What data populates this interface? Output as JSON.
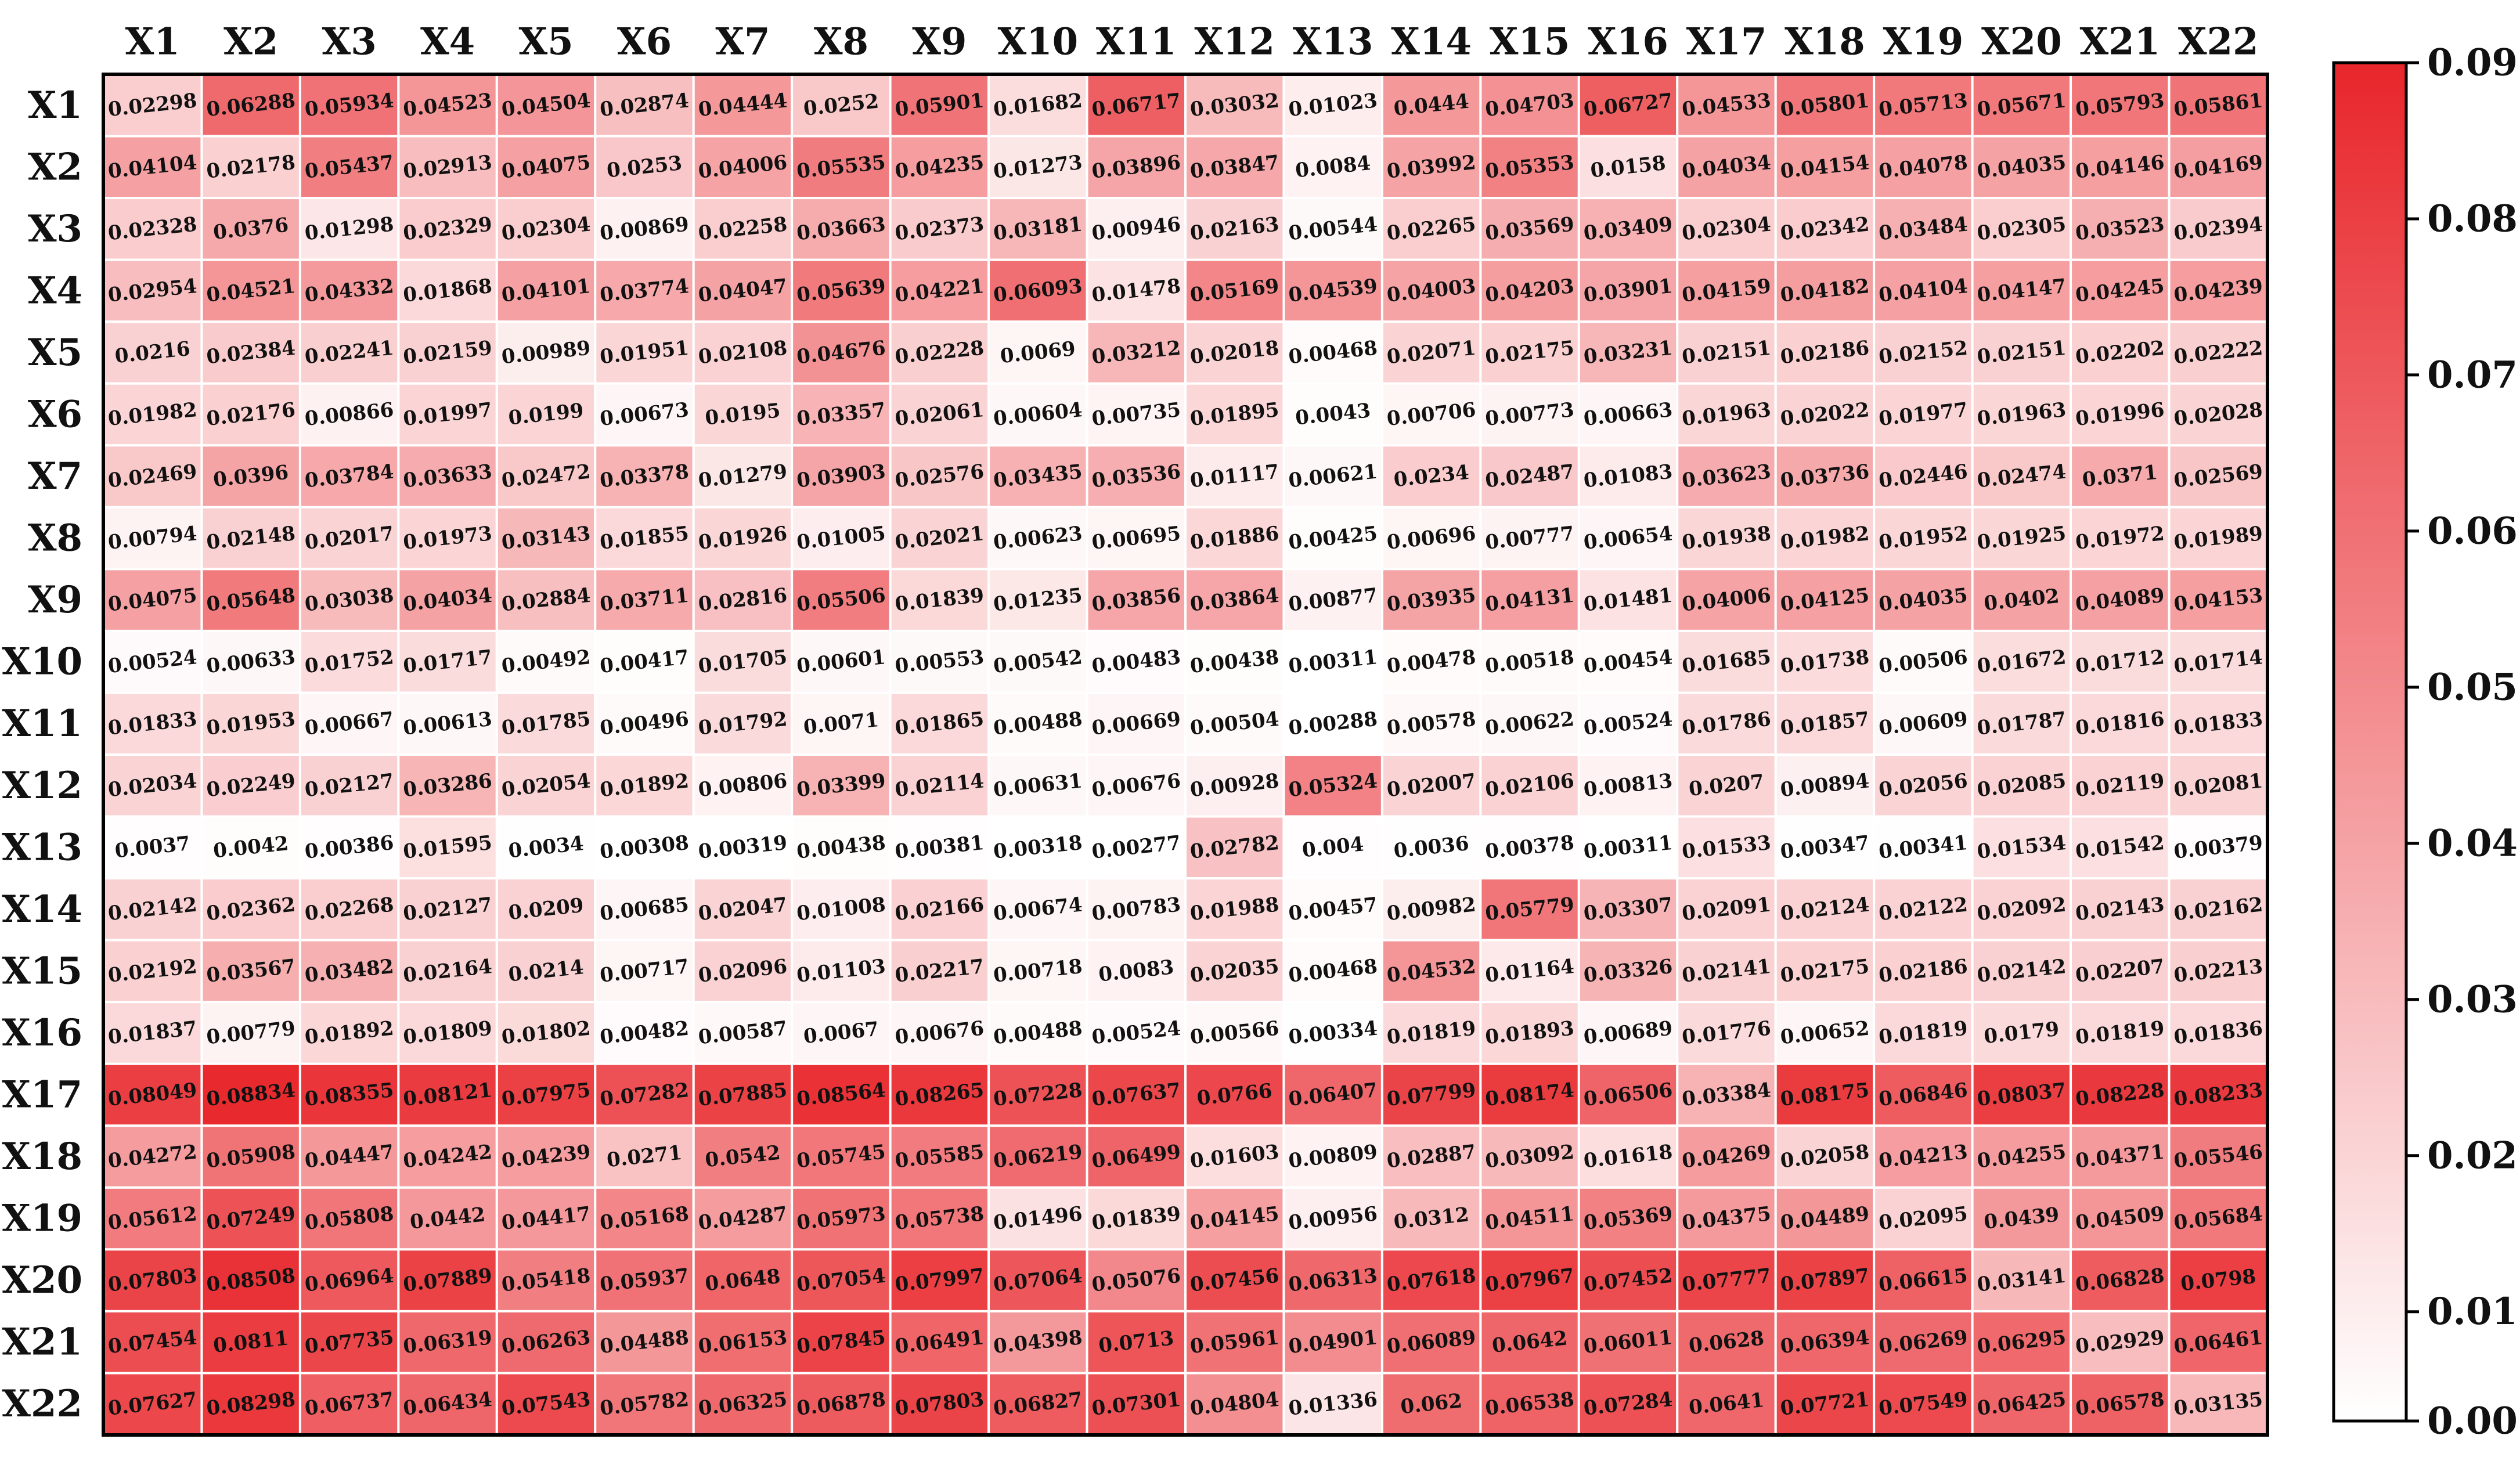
{
  "chart_data": {
    "type": "heatmap",
    "title": "",
    "xlabel": "",
    "ylabel": "",
    "x_categories": [
      "X1",
      "X2",
      "X3",
      "X4",
      "X5",
      "X6",
      "X7",
      "X8",
      "X9",
      "X10",
      "X11",
      "X12",
      "X13",
      "X14",
      "X15",
      "X16",
      "X17",
      "X18",
      "X19",
      "X20",
      "X21",
      "X22"
    ],
    "y_categories": [
      "X1",
      "X2",
      "X3",
      "X4",
      "X5",
      "X6",
      "X7",
      "X8",
      "X9",
      "X10",
      "X11",
      "X12",
      "X13",
      "X14",
      "X15",
      "X16",
      "X17",
      "X18",
      "X19",
      "X20",
      "X21",
      "X22"
    ],
    "values": [
      [
        "0.02298",
        "0.06288",
        "0.05934",
        "0.04523",
        "0.04504",
        "0.02874",
        "0.04444",
        "0.0252",
        "0.05901",
        "0.01682",
        "0.06717",
        "0.03032",
        "0.01023",
        "0.0444",
        "0.04703",
        "0.06727",
        "0.04533",
        "0.05801",
        "0.05713",
        "0.05671",
        "0.05793",
        "0.05861"
      ],
      [
        "0.04104",
        "0.02178",
        "0.05437",
        "0.02913",
        "0.04075",
        "0.0253",
        "0.04006",
        "0.05535",
        "0.04235",
        "0.01273",
        "0.03896",
        "0.03847",
        "0.0084",
        "0.03992",
        "0.05353",
        "0.0158",
        "0.04034",
        "0.04154",
        "0.04078",
        "0.04035",
        "0.04146",
        "0.04169"
      ],
      [
        "0.02328",
        "0.0376",
        "0.01298",
        "0.02329",
        "0.02304",
        "0.00869",
        "0.02258",
        "0.03663",
        "0.02373",
        "0.03181",
        "0.00946",
        "0.02163",
        "0.00544",
        "0.02265",
        "0.03569",
        "0.03409",
        "0.02304",
        "0.02342",
        "0.03484",
        "0.02305",
        "0.03523",
        "0.02394"
      ],
      [
        "0.02954",
        "0.04521",
        "0.04332",
        "0.01868",
        "0.04101",
        "0.03774",
        "0.04047",
        "0.05639",
        "0.04221",
        "0.06093",
        "0.01478",
        "0.05169",
        "0.04539",
        "0.04003",
        "0.04203",
        "0.03901",
        "0.04159",
        "0.04182",
        "0.04104",
        "0.04147",
        "0.04245",
        "0.04239"
      ],
      [
        "0.0216",
        "0.02384",
        "0.02241",
        "0.02159",
        "0.00989",
        "0.01951",
        "0.02108",
        "0.04676",
        "0.02228",
        "0.0069",
        "0.03212",
        "0.02018",
        "0.00468",
        "0.02071",
        "0.02175",
        "0.03231",
        "0.02151",
        "0.02186",
        "0.02152",
        "0.02151",
        "0.02202",
        "0.02222"
      ],
      [
        "0.01982",
        "0.02176",
        "0.00866",
        "0.01997",
        "0.0199",
        "0.00673",
        "0.0195",
        "0.03357",
        "0.02061",
        "0.00604",
        "0.00735",
        "0.01895",
        "0.0043",
        "0.00706",
        "0.00773",
        "0.00663",
        "0.01963",
        "0.02022",
        "0.01977",
        "0.01963",
        "0.01996",
        "0.02028"
      ],
      [
        "0.02469",
        "0.0396",
        "0.03784",
        "0.03633",
        "0.02472",
        "0.03378",
        "0.01279",
        "0.03903",
        "0.02576",
        "0.03435",
        "0.03536",
        "0.01117",
        "0.00621",
        "0.0234",
        "0.02487",
        "0.01083",
        "0.03623",
        "0.03736",
        "0.02446",
        "0.02474",
        "0.0371",
        "0.02569"
      ],
      [
        "0.00794",
        "0.02148",
        "0.02017",
        "0.01973",
        "0.03143",
        "0.01855",
        "0.01926",
        "0.01005",
        "0.02021",
        "0.00623",
        "0.00695",
        "0.01886",
        "0.00425",
        "0.00696",
        "0.00777",
        "0.00654",
        "0.01938",
        "0.01982",
        "0.01952",
        "0.01925",
        "0.01972",
        "0.01989"
      ],
      [
        "0.04075",
        "0.05648",
        "0.03038",
        "0.04034",
        "0.02884",
        "0.03711",
        "0.02816",
        "0.05506",
        "0.01839",
        "0.01235",
        "0.03856",
        "0.03864",
        "0.00877",
        "0.03935",
        "0.04131",
        "0.01481",
        "0.04006",
        "0.04125",
        "0.04035",
        "0.0402",
        "0.04089",
        "0.04153"
      ],
      [
        "0.00524",
        "0.00633",
        "0.01752",
        "0.01717",
        "0.00492",
        "0.00417",
        "0.01705",
        "0.00601",
        "0.00553",
        "0.00542",
        "0.00483",
        "0.00438",
        "0.00311",
        "0.00478",
        "0.00518",
        "0.00454",
        "0.01685",
        "0.01738",
        "0.00506",
        "0.01672",
        "0.01712",
        "0.01714"
      ],
      [
        "0.01833",
        "0.01953",
        "0.00667",
        "0.00613",
        "0.01785",
        "0.00496",
        "0.01792",
        "0.0071",
        "0.01865",
        "0.00488",
        "0.00669",
        "0.00504",
        "0.00288",
        "0.00578",
        "0.00622",
        "0.00524",
        "0.01786",
        "0.01857",
        "0.00609",
        "0.01787",
        "0.01816",
        "0.01833"
      ],
      [
        "0.02034",
        "0.02249",
        "0.02127",
        "0.03286",
        "0.02054",
        "0.01892",
        "0.00806",
        "0.03399",
        "0.02114",
        "0.00631",
        "0.00676",
        "0.00928",
        "0.05324",
        "0.02007",
        "0.02106",
        "0.00813",
        "0.0207",
        "0.00894",
        "0.02056",
        "0.02085",
        "0.02119",
        "0.02081"
      ],
      [
        "0.0037",
        "0.0042",
        "0.00386",
        "0.01595",
        "0.0034",
        "0.00308",
        "0.00319",
        "0.00438",
        "0.00381",
        "0.00318",
        "0.00277",
        "0.02782",
        "0.004",
        "0.0036",
        "0.00378",
        "0.00311",
        "0.01533",
        "0.00347",
        "0.00341",
        "0.01534",
        "0.01542",
        "0.00379"
      ],
      [
        "0.02142",
        "0.02362",
        "0.02268",
        "0.02127",
        "0.0209",
        "0.00685",
        "0.02047",
        "0.01008",
        "0.02166",
        "0.00674",
        "0.00783",
        "0.01988",
        "0.00457",
        "0.00982",
        "0.05779",
        "0.03307",
        "0.02091",
        "0.02124",
        "0.02122",
        "0.02092",
        "0.02143",
        "0.02162"
      ],
      [
        "0.02192",
        "0.03567",
        "0.03482",
        "0.02164",
        "0.0214",
        "0.00717",
        "0.02096",
        "0.01103",
        "0.02217",
        "0.00718",
        "0.0083",
        "0.02035",
        "0.00468",
        "0.04532",
        "0.01164",
        "0.03326",
        "0.02141",
        "0.02175",
        "0.02186",
        "0.02142",
        "0.02207",
        "0.02213"
      ],
      [
        "0.01837",
        "0.00779",
        "0.01892",
        "0.01809",
        "0.01802",
        "0.00482",
        "0.00587",
        "0.0067",
        "0.00676",
        "0.00488",
        "0.00524",
        "0.00566",
        "0.00334",
        "0.01819",
        "0.01893",
        "0.00689",
        "0.01776",
        "0.00652",
        "0.01819",
        "0.0179",
        "0.01819",
        "0.01836"
      ],
      [
        "0.08049",
        "0.08834",
        "0.08355",
        "0.08121",
        "0.07975",
        "0.07282",
        "0.07885",
        "0.08564",
        "0.08265",
        "0.07228",
        "0.07637",
        "0.0766",
        "0.06407",
        "0.07799",
        "0.08174",
        "0.06506",
        "0.03384",
        "0.08175",
        "0.06846",
        "0.08037",
        "0.08228",
        "0.08233"
      ],
      [
        "0.04272",
        "0.05908",
        "0.04447",
        "0.04242",
        "0.04239",
        "0.0271",
        "0.0542",
        "0.05745",
        "0.05585",
        "0.06219",
        "0.06499",
        "0.01603",
        "0.00809",
        "0.02887",
        "0.03092",
        "0.01618",
        "0.04269",
        "0.02058",
        "0.04213",
        "0.04255",
        "0.04371",
        "0.05546"
      ],
      [
        "0.05612",
        "0.07249",
        "0.05808",
        "0.0442",
        "0.04417",
        "0.05168",
        "0.04287",
        "0.05973",
        "0.05738",
        "0.01496",
        "0.01839",
        "0.04145",
        "0.00956",
        "0.0312",
        "0.04511",
        "0.05369",
        "0.04375",
        "0.04489",
        "0.02095",
        "0.0439",
        "0.04509",
        "0.05684"
      ],
      [
        "0.07803",
        "0.08508",
        "0.06964",
        "0.07889",
        "0.05418",
        "0.05937",
        "0.0648",
        "0.07054",
        "0.07997",
        "0.07064",
        "0.05076",
        "0.07456",
        "0.06313",
        "0.07618",
        "0.07967",
        "0.07452",
        "0.07777",
        "0.07897",
        "0.06615",
        "0.03141",
        "0.06828",
        "0.0798"
      ],
      [
        "0.07454",
        "0.0811",
        "0.07735",
        "0.06319",
        "0.06263",
        "0.04488",
        "0.06153",
        "0.07845",
        "0.06491",
        "0.04398",
        "0.0713",
        "0.05961",
        "0.04901",
        "0.06089",
        "0.0642",
        "0.06011",
        "0.0628",
        "0.06394",
        "0.06269",
        "0.06295",
        "0.02929",
        "0.06461"
      ],
      [
        "0.07627",
        "0.08298",
        "0.06737",
        "0.06434",
        "0.07543",
        "0.05782",
        "0.06325",
        "0.06878",
        "0.07803",
        "0.06827",
        "0.07301",
        "0.04804",
        "0.01336",
        "0.062",
        "0.06538",
        "0.07284",
        "0.0641",
        "0.07721",
        "0.07549",
        "0.06425",
        "0.06578",
        "0.03135"
      ]
    ],
    "colorbar": {
      "min": 0.003,
      "max": 0.09,
      "tick_labels": [
        "0.003",
        "0.01",
        "0.02",
        "0.03",
        "0.04",
        "0.05",
        "0.06",
        "0.07",
        "0.08",
        "0.09"
      ],
      "color_low": "#ffffff",
      "color_high": "#e8262b"
    },
    "grid": true,
    "legend": "right"
  }
}
